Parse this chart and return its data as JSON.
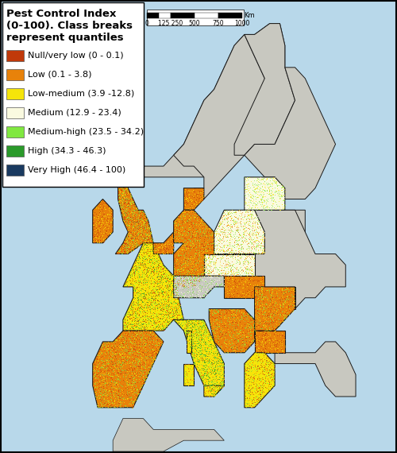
{
  "title_lines": [
    "Pest Control Index",
    "(0-100). Class breaks",
    "represent quantiles"
  ],
  "legend_entries": [
    {
      "label": "Null/very low (0 - 0.1)",
      "color": "#C0390A"
    },
    {
      "label": "Low (0.1 - 3.8)",
      "color": "#E8820A"
    },
    {
      "label": "Low-medium (3.9 -12.8)",
      "color": "#F5E50A"
    },
    {
      "label": "Medium (12.9 - 23.4)",
      "color": "#FAFAE0"
    },
    {
      "label": "Medium-high (23.5 - 34.2)",
      "color": "#80E840"
    },
    {
      "label": "High (34.3 - 46.3)",
      "color": "#2A9A2A"
    },
    {
      "label": "Very High (46.4 - 100)",
      "color": "#1A3A60"
    }
  ],
  "scalebar_label": "Km",
  "scalebar_ticks": [
    "0",
    "125",
    "250",
    "500",
    "750",
    "1000"
  ],
  "bg_color": "#B8D8EA",
  "legend_bg": "#FFFFFF",
  "grey_land": "#C8C8C0",
  "border_color": "#1A1A1A",
  "fig_border": "#000000"
}
